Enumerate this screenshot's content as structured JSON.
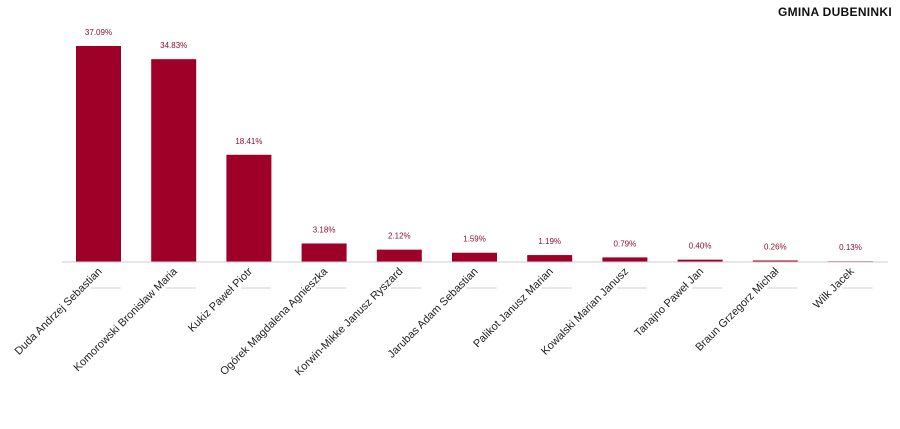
{
  "chart_data": {
    "type": "bar",
    "title": "GMINA DUBENINKI",
    "categories": [
      "Duda Andrzej Sebastian",
      "Komorowski Bronisław Maria",
      "Kukiz Paweł Piotr",
      "Ogórek Magdalena Agnieszka",
      "Korwin-Mikke Janusz Ryszard",
      "Jarubas Adam Sebastian",
      "Palikot Janusz Marian",
      "Kowalski Marian Janusz",
      "Tanajno Paweł Jan",
      "Braun Grzegorz Michał",
      "Wilk Jacek"
    ],
    "values": [
      37.09,
      34.83,
      18.41,
      3.18,
      2.12,
      1.59,
      1.19,
      0.79,
      0.4,
      0.26,
      0.13
    ],
    "data_labels": [
      "37.09%",
      "34.83%",
      "18.41%",
      "3.18%",
      "2.12%",
      "1.59%",
      "1.19%",
      "0.79%",
      "0.40%",
      "0.26%",
      "0.13%"
    ],
    "ylim": [
      0,
      37.09
    ],
    "xlabel": "",
    "ylabel": "",
    "grid": false,
    "colors": {
      "bar": "#9e0028",
      "label": "#8a1030",
      "axis": "#cccccc",
      "leader": "#d0d0d0"
    }
  }
}
